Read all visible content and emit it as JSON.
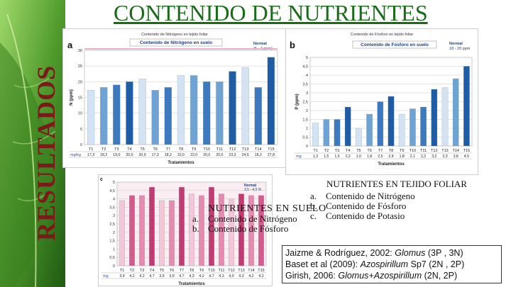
{
  "page": {
    "title": "CONTENIDO DE NUTRIENTES",
    "side_title": "RESULTADOS"
  },
  "labels": {
    "tratamientos": "Tratamientos",
    "row_key_a": "mg/kg",
    "row_key_b": "mg",
    "row_key_c": "mg"
  },
  "panels": {
    "a": {
      "letter": "a",
      "header": "Contenido de Nitrógeno en tejido foliar"
    },
    "b": {
      "letter": "b",
      "header": "Contenido de Fósforo en tejido foliar"
    },
    "c": {
      "letter": "c",
      "normal_label": "Normal",
      "normal_range": "3,5 - 4,5 %"
    }
  },
  "chart_data": [
    {
      "type": "bar",
      "id": "a",
      "title": "Contenido de Nitrógeno en suelo",
      "legend_label": "Normal",
      "legend_range": "(5 - 7 ppm)",
      "xlabel": "Tratamientos",
      "ylabel": "N (ppm)",
      "ylim": [
        0,
        30
      ],
      "yticks": [
        0,
        5,
        10,
        15,
        20,
        25,
        30
      ],
      "categories": [
        "T1",
        "T2",
        "T3",
        "T4",
        "T5",
        "T6",
        "T7",
        "T8",
        "T9",
        "T10",
        "T11",
        "T12",
        "T13",
        "T14",
        "T15"
      ],
      "values": [
        17.3,
        18.2,
        19.0,
        20.0,
        20.9,
        17.3,
        18.2,
        22.0,
        22.0,
        20.0,
        20.0,
        23.3,
        24.5,
        18.2,
        27.8
      ],
      "value_labels": [
        "17,3",
        "18,2",
        "19,0",
        "20,0",
        "20,9",
        "17,3",
        "18,2",
        "22,0",
        "22,0",
        "20,0",
        "20,0",
        "23,3",
        "24,5",
        "18,2",
        "27,8"
      ],
      "colors": [
        "#d4e3f4",
        "#6fa3d6",
        "#3d79bf",
        "#1f5ca6",
        "#d4e3f4",
        "#6fa3d6",
        "#3d79bf",
        "#d4e3f4",
        "#6fa3d6",
        "#3d79bf",
        "#6fa3d6",
        "#1f5ca6",
        "#d4e3f4",
        "#3d79bf",
        "#1f5ca6"
      ]
    },
    {
      "type": "bar",
      "id": "b",
      "title": "Contenido de Fósforo en suelo",
      "legend_label": "Normal",
      "legend_range": "18 - 20 ppm",
      "xlabel": "Tratamientos",
      "ylabel": "P (ppm)",
      "ylim": [
        0,
        5
      ],
      "yticks": [
        0,
        0.5,
        1,
        1.5,
        2,
        2.5,
        3,
        3.5,
        4,
        4.5,
        5
      ],
      "ytick_labels": [
        "0",
        "0,5",
        "1",
        "1,5",
        "2",
        "2,5",
        "3",
        "3,5",
        "4",
        "4,5",
        "5"
      ],
      "categories": [
        "T1",
        "T2",
        "T3",
        "T4",
        "T5",
        "T6",
        "T7",
        "T8",
        "T9",
        "T10",
        "T11",
        "T12",
        "T13",
        "T14",
        "T15"
      ],
      "values": [
        1.3,
        1.5,
        1.5,
        2.2,
        1.0,
        1.8,
        2.5,
        2.8,
        1.8,
        2.1,
        2.2,
        3.2,
        3.3,
        3.8,
        4.5
      ],
      "value_labels": [
        "1,3",
        "1,5",
        "1,5",
        "2,2",
        "1,0",
        "1,8",
        "2,5",
        "2,8",
        "1,8",
        "2,1",
        "2,2",
        "3,2",
        "3,3",
        "3,8",
        "4,5"
      ],
      "colors": [
        "#d4e3f4",
        "#6fa3d6",
        "#3d79bf",
        "#1f5ca6",
        "#d4e3f4",
        "#6fa3d6",
        "#3d79bf",
        "#1f5ca6",
        "#d4e3f4",
        "#6fa3d6",
        "#3d79bf",
        "#1f5ca6",
        "#d4e3f4",
        "#6fa3d6",
        "#1f5ca6"
      ]
    },
    {
      "type": "bar",
      "id": "c",
      "title": "",
      "xlabel": "Tratamientos",
      "ylim": [
        0,
        5
      ],
      "yticks": [
        0,
        0.5,
        1,
        1.5,
        2,
        2.5,
        3,
        3.5,
        4,
        4.5,
        5
      ],
      "ytick_labels": [
        "0",
        "0,5",
        "1",
        "1,5",
        "2",
        "2,5",
        "3",
        "3,5",
        "4",
        "4,5",
        "5"
      ],
      "categories": [
        "T1",
        "T2",
        "T3",
        "T4",
        "T5",
        "T6",
        "T7",
        "T8",
        "T9",
        "T10",
        "T11",
        "T12",
        "T13",
        "T14",
        "T15"
      ],
      "values": [
        3.9,
        4.2,
        4.2,
        4.7,
        3.9,
        3.9,
        4.7,
        4.3,
        4.2,
        4.7,
        4.3,
        4.0,
        4.3,
        4.2,
        4.2
      ],
      "value_labels": [
        "3,9",
        "4,2",
        "4,2",
        "4,7",
        "3,9",
        "3,9",
        "4,7",
        "4,3",
        "4,2",
        "4,7",
        "4,3",
        "4,0",
        "4,3",
        "4,2",
        "4,2"
      ],
      "colors": [
        "#f3c6d8",
        "#d35b8d",
        "#e68ab0",
        "#c23b72",
        "#f3c6d8",
        "#e68ab0",
        "#c23b72",
        "#f3c6d8",
        "#e68ab0",
        "#c23b72",
        "#e68ab0",
        "#f3c6d8",
        "#c23b72",
        "#e68ab0",
        "#d35b8d"
      ]
    }
  ],
  "foliar": {
    "title": "NUTRIENTES EN TEJIDO FOLIAR",
    "items": [
      {
        "key": "a.",
        "text": "Contenido de Nitrógeno"
      },
      {
        "key": "b.",
        "text": "Contenido de Fósforo"
      },
      {
        "key": "c.",
        "text": "Contenido de Potasio"
      }
    ]
  },
  "suelo": {
    "title": "NUTRIENTES EN SUELO",
    "items": [
      {
        "key": "a.",
        "text": "Contenido de Nitrógeno"
      },
      {
        "key": "b.",
        "text": "Contenido de Fósforo"
      }
    ]
  },
  "references": [
    {
      "authors": "Jaizme & Rodríguez, 2002:",
      "organism": "Glomus",
      "detail": "(3P , 3N)"
    },
    {
      "authors": "Baset et al (2009):",
      "organism": "Azospirillum",
      "detail": "Sp7 (2N , 2P)"
    },
    {
      "authors": "Girish, 2006:",
      "organism": "Glomus+Azospirillum",
      "detail": "(2N, 2P)"
    }
  ]
}
